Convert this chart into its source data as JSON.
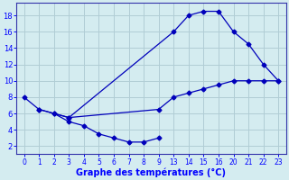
{
  "title": "Graphe des températures (°C)",
  "bg_color": "#d4ecf0",
  "grid_color": "#b0cdd5",
  "line_color": "#0000bb",
  "hour_labels": [
    "0",
    "1",
    "2",
    "3",
    "4",
    "5",
    "6",
    "7",
    "8",
    "9",
    "13",
    "14",
    "15",
    "16",
    "20",
    "21",
    "22",
    "23"
  ],
  "ylim": [
    1.0,
    19.5
  ],
  "yticks": [
    2,
    4,
    6,
    8,
    10,
    12,
    14,
    16,
    18
  ],
  "line1_idx": [
    0,
    1,
    2,
    3,
    10,
    11,
    12,
    13,
    14,
    15,
    16,
    17
  ],
  "line1_y": [
    8,
    6.5,
    6.0,
    5.5,
    16.0,
    18.0,
    18.5,
    18.5,
    16.0,
    14.5,
    12.0,
    10.0
  ],
  "line2_idx": [
    2,
    3,
    4,
    5,
    6,
    7,
    8,
    9
  ],
  "line2_y": [
    6.0,
    5.0,
    4.5,
    3.5,
    3.0,
    2.5,
    2.5,
    3.0
  ],
  "line3_idx": [
    1,
    3,
    9,
    10,
    11,
    12,
    13,
    14,
    15,
    16,
    17
  ],
  "line3_y": [
    6.5,
    5.5,
    6.5,
    8.0,
    8.5,
    9.0,
    9.5,
    10.0,
    10.0,
    10.0,
    10.0
  ]
}
